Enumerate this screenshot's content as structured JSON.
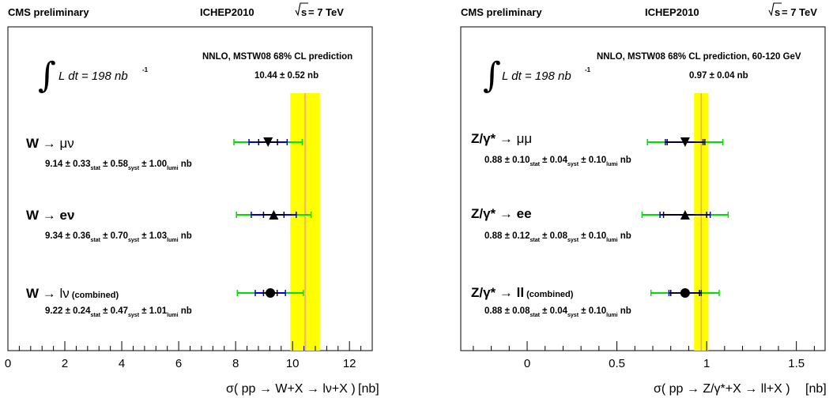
{
  "panels": [
    {
      "header": {
        "left": "CMS preliminary",
        "center": "ICHEP2010",
        "right_sqrt": "s",
        "right_rest": " = 7 TeV"
      },
      "lumi": {
        "prefix": "L dt = 198 nb",
        "sup": "-1"
      },
      "prediction_label": "NNLO, MSTW08 68% CL prediction",
      "prediction_value": "10.44 ± 0.52 nb",
      "xlabel_a": "σ( pp → W+X → lν+X )",
      "xlabel_b": "[nb]",
      "rows": [
        {
          "label_a": "W → ",
          "label_b": "μν",
          "label_c": "",
          "result": {
            "v": "9.14 ± 0.33",
            "stat": "stat",
            "syst_v": " ± 0.58",
            "syst": "syst",
            "lumi_v": " ± 1.00",
            "lumi": "lumi",
            "unit": " nb"
          }
        },
        {
          "label_a": "W → ",
          "label_b": "eν",
          "label_c": "",
          "result": {
            "v": "9.34 ± 0.36",
            "stat": "stat",
            "syst_v": " ± 0.70",
            "syst": "syst",
            "lumi_v": " ± 1.03",
            "lumi": "lumi",
            "unit": " nb"
          }
        },
        {
          "label_a": "W → ",
          "label_b": "lν",
          "label_c": " (combined)",
          "result": {
            "v": "9.22 ± 0.24",
            "stat": "stat",
            "syst_v": " ± 0.47",
            "syst": "syst",
            "lumi_v": " ± 1.01",
            "lumi": "lumi",
            "unit": " nb"
          }
        }
      ]
    },
    {
      "header": {
        "left": "CMS preliminary",
        "center": "ICHEP2010",
        "right_sqrt": "s",
        "right_rest": " = 7 TeV"
      },
      "lumi": {
        "prefix": "L dt = 198 nb",
        "sup": "-1"
      },
      "prediction_label": "NNLO, MSTW08 68% CL prediction, 60-120 GeV",
      "prediction_value": "0.97 ± 0.04 nb",
      "xlabel_a": "σ( pp → Z/γ*+X → ll+X )",
      "xlabel_b": "[nb]",
      "rows": [
        {
          "label_a": "Z/γ* → ",
          "label_b": "μμ",
          "label_c": "",
          "result": {
            "v": "0.88 ± 0.10",
            "stat": "stat",
            "syst_v": " ± 0.04",
            "syst": "syst",
            "lumi_v": " ± 0.10",
            "lumi": "lumi",
            "unit": " nb"
          }
        },
        {
          "label_a": "Z/γ* → ",
          "label_b": "ee",
          "label_c": "",
          "result": {
            "v": "0.88 ± 0.12",
            "stat": "stat",
            "syst_v": " ± 0.08",
            "syst": "syst",
            "lumi_v": " ± 0.10",
            "lumi": "lumi",
            "unit": " nb"
          }
        },
        {
          "label_a": "Z/γ* → ",
          "label_b": "ll",
          "label_c": "   (combined)",
          "result": {
            "v": "0.88 ± 0.08",
            "stat": "stat",
            "syst_v": " ± 0.04",
            "syst": "syst",
            "lumi_v": " ± 0.10",
            "lumi": "lumi",
            "unit": " nb"
          }
        }
      ]
    }
  ],
  "chart_data": [
    {
      "type": "scatter",
      "title": "",
      "xlabel": "σ( pp → W+X → lν+X ) [nb]",
      "ylabel": "",
      "xlim": [
        0,
        12.8
      ],
      "xticks": [
        "0",
        "2",
        "4",
        "6",
        "8",
        "10",
        "12"
      ],
      "xtick_values": [
        0,
        2,
        4,
        6,
        8,
        10,
        12
      ],
      "grid": false,
      "theory": {
        "central": 10.44,
        "low": 9.92,
        "high": 10.96,
        "band_color": "#ffff00",
        "line_color": "#ff9999"
      },
      "points": [
        {
          "channel": "W → μν",
          "value": 9.14,
          "stat": 0.33,
          "stat_syst": 0.67,
          "total": 1.2,
          "marker": "triangle-down"
        },
        {
          "channel": "W → eν",
          "value": 9.34,
          "stat": 0.36,
          "stat_syst": 0.79,
          "total": 1.31,
          "marker": "triangle-up"
        },
        {
          "channel": "W → lν (combined)",
          "value": 9.22,
          "stat": 0.24,
          "stat_syst": 0.53,
          "total": 1.16,
          "marker": "circle"
        }
      ]
    },
    {
      "type": "scatter",
      "title": "",
      "xlabel": "σ( pp → Z/γ*+X → ll+X ) [nb]",
      "ylabel": "",
      "xlim": [
        -0.37,
        1.66
      ],
      "xticks": [
        "0",
        "0.5",
        "1",
        "1.5"
      ],
      "xtick_values": [
        0,
        0.5,
        1,
        1.5
      ],
      "grid": false,
      "theory": {
        "central": 0.97,
        "low": 0.93,
        "high": 1.01,
        "band_color": "#ffff00",
        "line_color": "#ff9999"
      },
      "points": [
        {
          "channel": "Z/γ* → μμ",
          "value": 0.88,
          "stat": 0.1,
          "stat_syst": 0.11,
          "total": 0.21,
          "marker": "triangle-down"
        },
        {
          "channel": "Z/γ* → ee",
          "value": 0.88,
          "stat": 0.12,
          "stat_syst": 0.14,
          "total": 0.24,
          "marker": "triangle-up"
        },
        {
          "channel": "Z/γ* → ll (combined)",
          "value": 0.88,
          "stat": 0.08,
          "stat_syst": 0.09,
          "total": 0.19,
          "marker": "circle"
        }
      ]
    }
  ],
  "colors": {
    "total_bar": "#00dd00",
    "stat_syst_bar": "#0000cc",
    "stat_bar": "#000000"
  }
}
